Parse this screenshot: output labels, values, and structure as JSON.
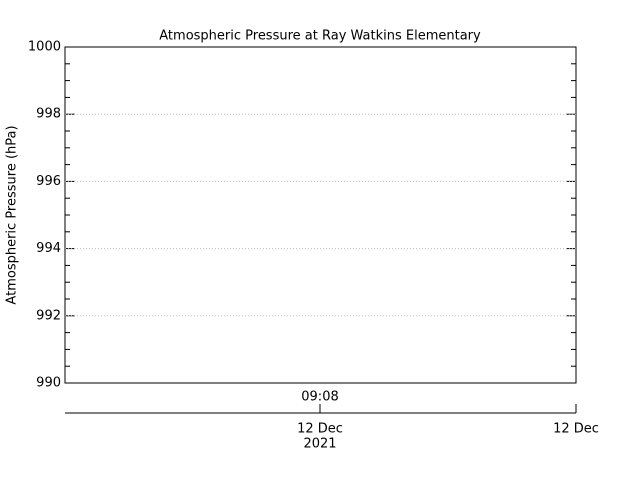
{
  "chart_data": {
    "type": "line",
    "title": "Atmospheric Pressure at Ray Watkins Elementary",
    "ylabel": "Atmospheric Pressure (hPa)",
    "ylim": [
      990,
      1000
    ],
    "yticks": [
      990,
      992,
      994,
      996,
      998,
      1000
    ],
    "grid": true,
    "x_time_labels": [
      "09:08"
    ],
    "x_date_labels": [
      {
        "day": "12 Dec",
        "year": "2021"
      },
      {
        "day": "12 Dec"
      }
    ]
  }
}
